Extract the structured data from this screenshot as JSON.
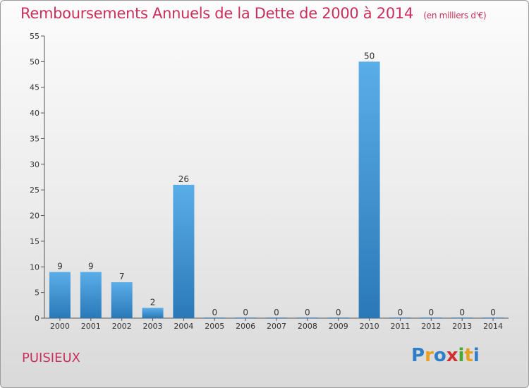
{
  "header": {
    "title": "Remboursements Annuels de la Dette de 2000 à 2014",
    "unit": "(en milliers d'€)"
  },
  "footer": {
    "commune": "PUISIEUX",
    "logo_text": "Proxiti"
  },
  "colors": {
    "title": "#c8305a",
    "bar_top": "#5aaee8",
    "bar_bottom": "#2a78b8"
  },
  "chart_data": {
    "type": "bar",
    "categories": [
      "2000",
      "2001",
      "2002",
      "2003",
      "2004",
      "2005",
      "2006",
      "2007",
      "2008",
      "2009",
      "2010",
      "2011",
      "2012",
      "2013",
      "2014"
    ],
    "values": [
      9,
      9,
      7,
      2,
      26,
      0,
      0,
      0,
      0,
      0,
      50,
      0,
      0,
      0,
      0
    ],
    "title": "Remboursements Annuels de la Dette de 2000 à 2014",
    "ylim": [
      0,
      55
    ],
    "yticks": [
      0,
      5,
      10,
      15,
      20,
      25,
      30,
      35,
      40,
      45,
      50,
      55
    ],
    "grid": false,
    "data_labels": true
  }
}
